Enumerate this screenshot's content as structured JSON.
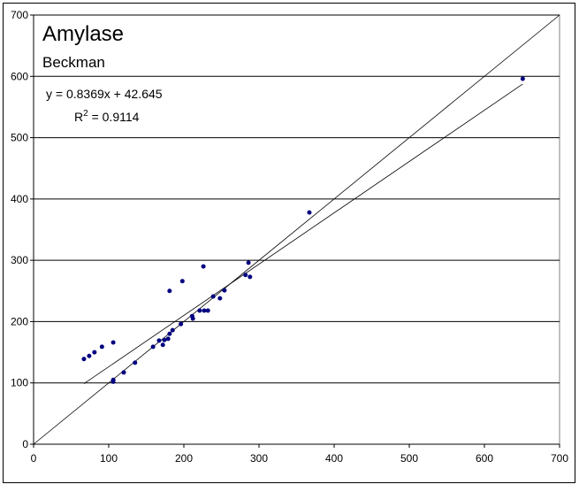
{
  "chart_data": {
    "type": "scatter",
    "title": "Amylase",
    "subtitle": "Beckman",
    "equation": "y = 0.8369x + 42.645",
    "r2": {
      "symbol": "R",
      "exponent": "2",
      "text": " = 0.9114"
    },
    "trendline": {
      "slope": 0.8369,
      "intercept": 42.645
    },
    "identity_line": true,
    "color": "#000080",
    "x": [
      67,
      74,
      81,
      91,
      106,
      106,
      106,
      120,
      135,
      159,
      167,
      172,
      174,
      179,
      181,
      185,
      181,
      196,
      198,
      211,
      212,
      221,
      227,
      232,
      226,
      239,
      248,
      254,
      282,
      286,
      288,
      367,
      651
    ],
    "values": [
      139,
      144,
      150,
      159,
      166,
      105,
      102,
      117,
      133,
      159,
      169,
      162,
      170,
      172,
      180,
      186,
      250,
      196,
      266,
      209,
      205,
      218,
      218,
      218,
      290,
      241,
      238,
      251,
      276,
      296,
      273,
      378,
      596
    ],
    "xlim": [
      0,
      700
    ],
    "ylim": [
      0,
      700
    ],
    "xticks": [
      0,
      100,
      200,
      300,
      400,
      500,
      600,
      700
    ],
    "yticks": [
      0,
      100,
      200,
      300,
      400,
      500,
      600,
      700
    ],
    "grid": true
  }
}
